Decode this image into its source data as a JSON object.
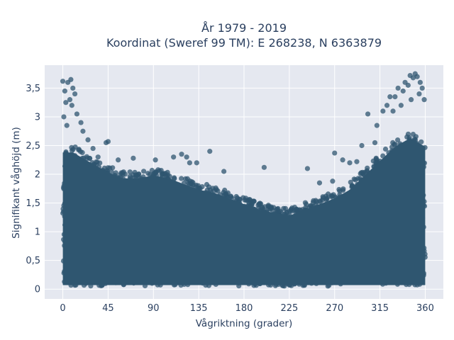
{
  "chart_data": {
    "type": "scatter",
    "title_line1": "År 1979 - 2019",
    "title_line2": "Koordinat (Sweref 99 TM): E 268238, N 6363879",
    "xlabel": "Vågriktning (grader)",
    "ylabel": "Signifikant våghöjd (m)",
    "xlim": [
      -18,
      378
    ],
    "ylim": [
      -0.17,
      3.9
    ],
    "x_ticks": [
      0,
      45,
      90,
      135,
      180,
      225,
      270,
      315,
      360
    ],
    "x_tick_labels": [
      "0",
      "45",
      "90",
      "135",
      "180",
      "225",
      "270",
      "315",
      "360"
    ],
    "y_ticks": [
      0,
      0.5,
      1,
      1.5,
      2,
      2.5,
      3,
      3.5
    ],
    "y_tick_labels": [
      "0",
      "0,5",
      "1",
      "1,5",
      "2",
      "2,5",
      "3",
      "3,5"
    ],
    "grid": true,
    "marker_color": "#2f5670",
    "plot_background": "#e5e8f0",
    "envelope": {
      "direction": [
        0,
        10,
        20,
        30,
        45,
        60,
        75,
        90,
        105,
        120,
        135,
        150,
        165,
        180,
        195,
        210,
        225,
        240,
        255,
        270,
        285,
        300,
        315,
        330,
        345,
        360
      ],
      "max_height_dense": [
        2.5,
        2.5,
        2.4,
        2.3,
        2.15,
        2.05,
        2.05,
        2.1,
        2.05,
        1.95,
        1.85,
        1.8,
        1.7,
        1.6,
        1.5,
        1.45,
        1.4,
        1.5,
        1.6,
        1.7,
        1.85,
        2.1,
        2.35,
        2.6,
        2.75,
        2.6
      ]
    },
    "outliers": [
      {
        "x": 0,
        "y": 3.62
      },
      {
        "x": 2,
        "y": 3.45
      },
      {
        "x": 5,
        "y": 3.6
      },
      {
        "x": 8,
        "y": 3.65
      },
      {
        "x": 10,
        "y": 3.5
      },
      {
        "x": 12,
        "y": 3.4
      },
      {
        "x": 3,
        "y": 3.25
      },
      {
        "x": 7,
        "y": 3.3
      },
      {
        "x": 9,
        "y": 3.2
      },
      {
        "x": 14,
        "y": 3.05
      },
      {
        "x": 18,
        "y": 2.9
      },
      {
        "x": 1,
        "y": 3.0
      },
      {
        "x": 4,
        "y": 2.85
      },
      {
        "x": 20,
        "y": 2.75
      },
      {
        "x": 25,
        "y": 2.6
      },
      {
        "x": 30,
        "y": 2.45
      },
      {
        "x": 43,
        "y": 2.55
      },
      {
        "x": 45,
        "y": 2.57
      },
      {
        "x": 35,
        "y": 2.3
      },
      {
        "x": 55,
        "y": 2.25
      },
      {
        "x": 70,
        "y": 2.28
      },
      {
        "x": 92,
        "y": 2.25
      },
      {
        "x": 110,
        "y": 2.3
      },
      {
        "x": 118,
        "y": 2.35
      },
      {
        "x": 123,
        "y": 2.3
      },
      {
        "x": 126,
        "y": 2.2
      },
      {
        "x": 133,
        "y": 2.2
      },
      {
        "x": 146,
        "y": 2.4
      },
      {
        "x": 160,
        "y": 2.05
      },
      {
        "x": 200,
        "y": 2.12
      },
      {
        "x": 243,
        "y": 2.1
      },
      {
        "x": 255,
        "y": 1.85
      },
      {
        "x": 268,
        "y": 1.88
      },
      {
        "x": 270,
        "y": 2.37
      },
      {
        "x": 278,
        "y": 2.25
      },
      {
        "x": 285,
        "y": 2.2
      },
      {
        "x": 292,
        "y": 2.22
      },
      {
        "x": 297,
        "y": 2.5
      },
      {
        "x": 303,
        "y": 3.05
      },
      {
        "x": 310,
        "y": 2.55
      },
      {
        "x": 318,
        "y": 3.1
      },
      {
        "x": 322,
        "y": 3.2
      },
      {
        "x": 325,
        "y": 3.35
      },
      {
        "x": 330,
        "y": 3.35
      },
      {
        "x": 333,
        "y": 3.5
      },
      {
        "x": 338,
        "y": 3.45
      },
      {
        "x": 340,
        "y": 3.6
      },
      {
        "x": 343,
        "y": 3.55
      },
      {
        "x": 345,
        "y": 3.72
      },
      {
        "x": 348,
        "y": 3.68
      },
      {
        "x": 350,
        "y": 3.75
      },
      {
        "x": 352,
        "y": 3.7
      },
      {
        "x": 355,
        "y": 3.6
      },
      {
        "x": 357,
        "y": 3.5
      },
      {
        "x": 359,
        "y": 3.3
      },
      {
        "x": 354,
        "y": 3.4
      },
      {
        "x": 346,
        "y": 3.3
      },
      {
        "x": 336,
        "y": 3.2
      },
      {
        "x": 328,
        "y": 3.1
      },
      {
        "x": 312,
        "y": 2.85
      }
    ]
  }
}
